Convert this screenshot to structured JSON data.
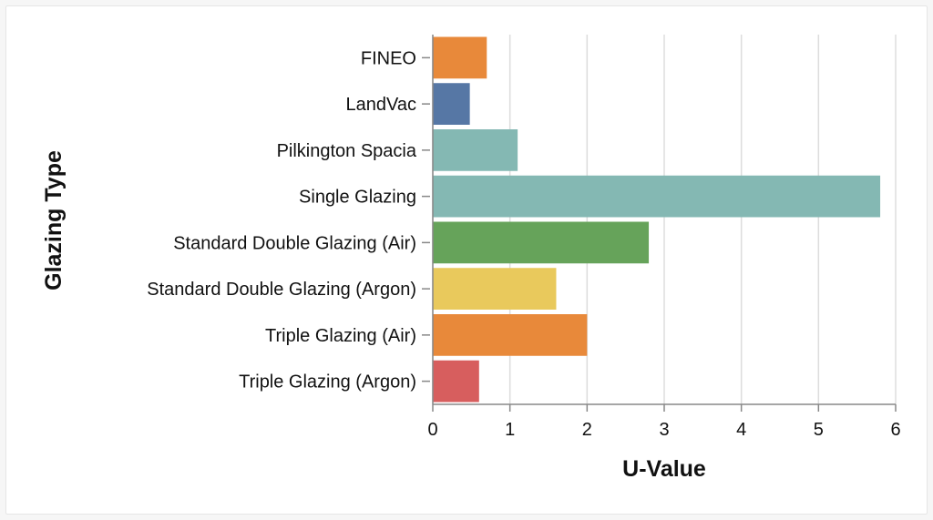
{
  "chart_data": {
    "type": "bar",
    "orientation": "horizontal",
    "categories": [
      "FINEO",
      "LandVac",
      "Pilkington Spacia",
      "Single Glazing",
      "Standard Double Glazing (Air)",
      "Standard Double Glazing (Argon)",
      "Triple Glazing (Air)",
      "Triple Glazing (Argon)"
    ],
    "values": [
      0.7,
      0.48,
      1.1,
      5.8,
      2.8,
      1.6,
      2.0,
      0.6
    ],
    "colors": [
      "#e8893a",
      "#5677a5",
      "#84b8b3",
      "#84b8b3",
      "#66a35a",
      "#e9c95c",
      "#e8893a",
      "#d75e5e"
    ],
    "xlabel": "U-Value",
    "ylabel": "Glazing Type",
    "xlim": [
      0,
      6
    ],
    "xticks": [
      "0",
      "1",
      "2",
      "3",
      "4",
      "5",
      "6"
    ],
    "grid": true
  }
}
